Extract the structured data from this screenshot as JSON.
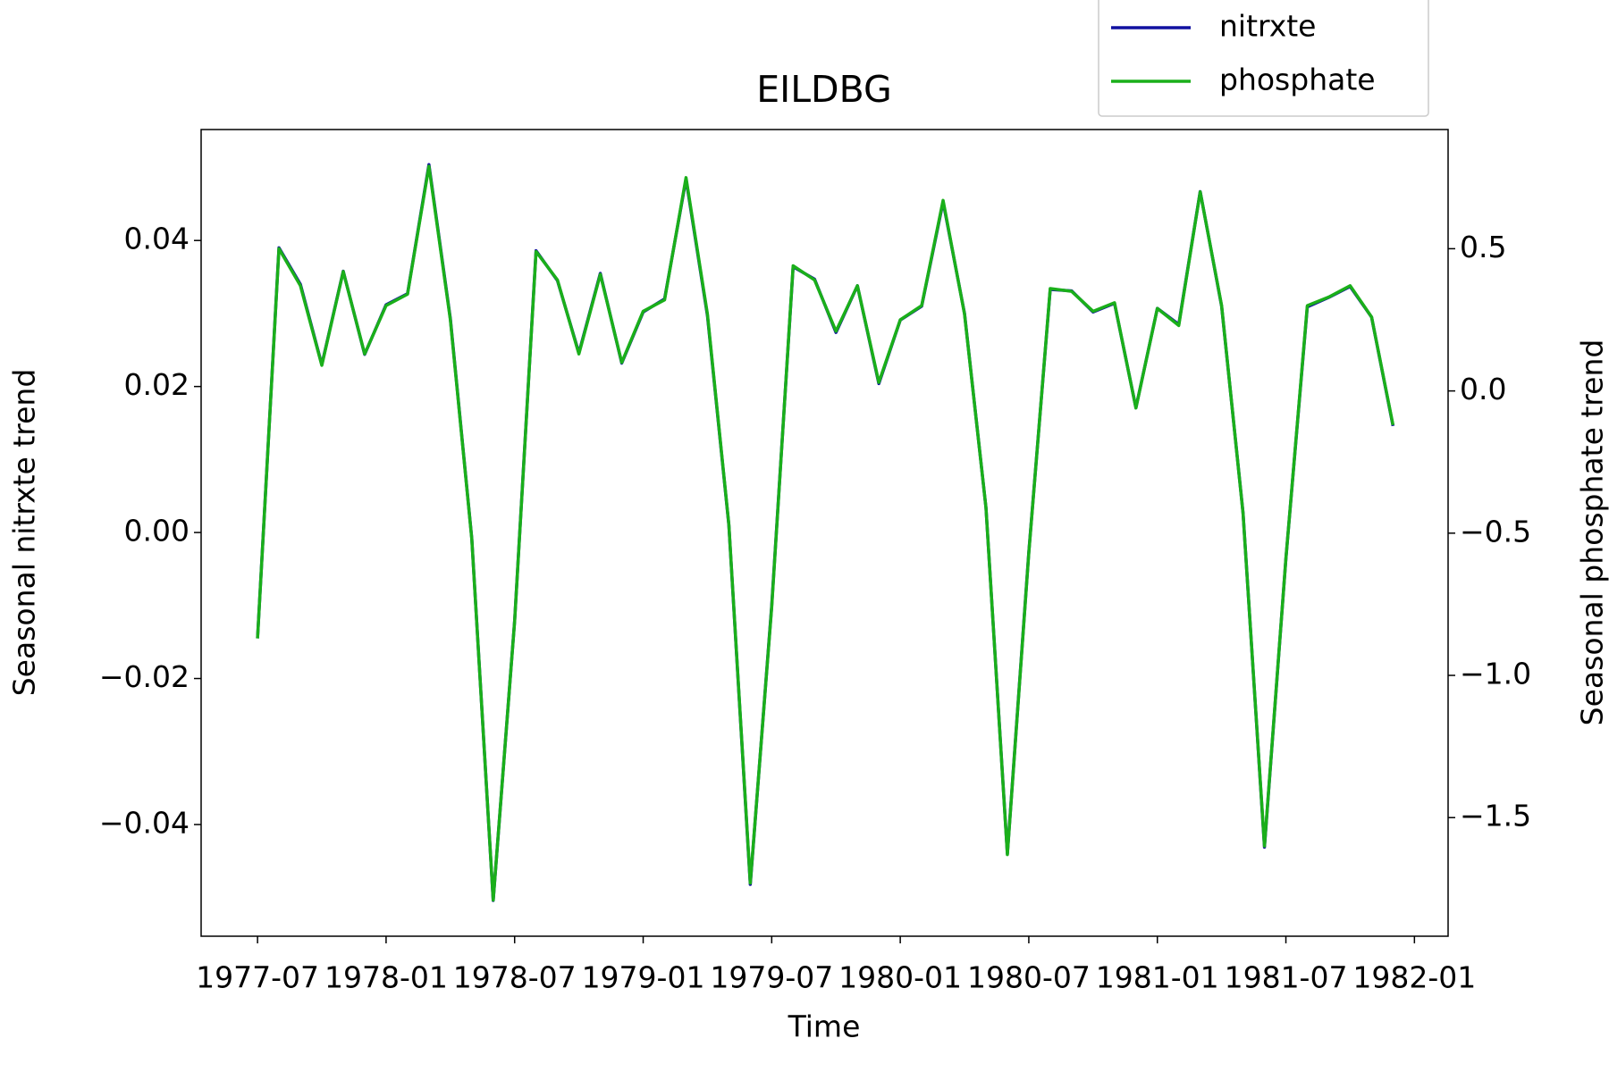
{
  "chart_data": {
    "type": "line",
    "title": "EILDBG",
    "xlabel": "Time",
    "ylabel": "Seasonal nitrxte trend",
    "y2label": "Seasonal phosphate trend",
    "x": [
      "1977-07",
      "1977-08",
      "1977-09",
      "1977-10",
      "1977-11",
      "1977-12",
      "1978-01",
      "1978-02",
      "1978-03",
      "1978-04",
      "1978-05",
      "1978-06",
      "1978-07",
      "1978-08",
      "1978-09",
      "1978-10",
      "1978-11",
      "1978-12",
      "1979-01",
      "1979-02",
      "1979-03",
      "1979-04",
      "1979-05",
      "1979-06",
      "1979-07",
      "1979-08",
      "1979-09",
      "1979-10",
      "1979-11",
      "1979-12",
      "1980-01",
      "1980-02",
      "1980-03",
      "1980-04",
      "1980-05",
      "1980-06",
      "1980-07",
      "1980-08",
      "1980-09",
      "1980-10",
      "1980-11",
      "1980-12",
      "1981-01",
      "1981-02",
      "1981-03",
      "1981-04",
      "1981-05",
      "1981-06",
      "1981-07",
      "1981-08",
      "1981-09",
      "1981-10",
      "1981-11",
      "1981-12"
    ],
    "series": [
      {
        "name": "nitrxte",
        "color": "#1010a0",
        "axis": "y",
        "values": [
          -0.0145,
          0.039,
          0.034,
          0.023,
          0.0358,
          0.0244,
          0.0312,
          0.0327,
          0.0504,
          0.0293,
          -0.0008,
          -0.0504,
          -0.0121,
          0.0386,
          0.0345,
          0.0246,
          0.0355,
          0.0232,
          0.0302,
          0.032,
          0.0484,
          0.0297,
          0.001,
          -0.0482,
          -0.01,
          0.0364,
          0.0347,
          0.0274,
          0.0338,
          0.0204,
          0.0291,
          0.031,
          0.0453,
          0.03,
          0.0034,
          -0.044,
          -0.0027,
          0.0333,
          0.0331,
          0.0302,
          0.0314,
          0.0171,
          0.0307,
          0.0285,
          0.0467,
          0.031,
          0.0027,
          -0.0431,
          -0.0036,
          0.0309,
          0.0322,
          0.0337,
          0.0295,
          0.0146
        ]
      },
      {
        "name": "phosphate",
        "color": "#1aaf1a",
        "axis": "y2",
        "values": [
          -0.87,
          0.5,
          0.37,
          0.09,
          0.42,
          0.13,
          0.3,
          0.34,
          0.79,
          0.25,
          -0.52,
          -1.79,
          -0.81,
          0.49,
          0.39,
          0.13,
          0.41,
          0.1,
          0.28,
          0.32,
          0.75,
          0.27,
          -0.47,
          -1.73,
          -0.76,
          0.44,
          0.39,
          0.21,
          0.37,
          0.03,
          0.25,
          0.3,
          0.67,
          0.27,
          -0.41,
          -1.63,
          -0.57,
          0.36,
          0.35,
          0.28,
          0.31,
          -0.06,
          0.29,
          0.23,
          0.7,
          0.3,
          -0.43,
          -1.6,
          -0.59,
          0.3,
          0.33,
          0.37,
          0.26,
          -0.12
        ]
      }
    ],
    "xlim": [
      "1977-04-12",
      "1982-02-17"
    ],
    "xticks": [
      "1977-07",
      "1978-01",
      "1978-07",
      "1979-01",
      "1979-07",
      "1980-01",
      "1980-07",
      "1981-01",
      "1981-07",
      "1982-01"
    ],
    "ylim": [
      -0.0553,
      0.0552
    ],
    "yticks": [
      {
        "value": -0.04,
        "label": "−0.04"
      },
      {
        "value": -0.02,
        "label": "−0.02"
      },
      {
        "value": 0,
        "label": "0.00"
      },
      0.02,
      0.04
    ],
    "y2lim": [
      -1.917,
      0.919
    ],
    "y2ticks": [
      {
        "value": -1.5,
        "label": "−1.5"
      },
      {
        "value": -1,
        "label": "−1.0"
      },
      {
        "value": -0.5,
        "label": "−0.5"
      },
      {
        "value": 0,
        "label": "0.0"
      },
      0.5
    ],
    "legend": "upper right",
    "grid": false
  }
}
